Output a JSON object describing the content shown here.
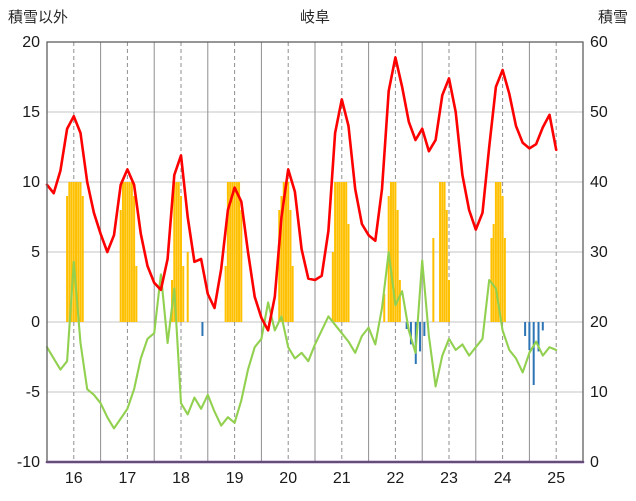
{
  "header": {
    "left_axis_title": "積雪以外",
    "chart_title": "岐阜",
    "right_axis_title": "積雪"
  },
  "chart_data": {
    "type": "line",
    "title": "岐阜",
    "left_axis": {
      "title": "積雪以外",
      "min": -10,
      "max": 20,
      "ticks": [
        20,
        15,
        10,
        5,
        0,
        -5,
        -10
      ]
    },
    "right_axis": {
      "title": "積雪",
      "min": 0,
      "max": 60,
      "ticks": [
        60,
        50,
        40,
        30,
        20,
        10,
        0
      ]
    },
    "x_axis": {
      "min": 16,
      "max": 26,
      "day_labels": [
        "16",
        "17",
        "18",
        "19",
        "20",
        "21",
        "22",
        "23",
        "24",
        "25"
      ]
    },
    "grid": {
      "h_color": "#c6c6c6",
      "v_color": "#8f8f8f",
      "frame_color": "#5f5f5f",
      "label_color": "#1a1a1a"
    },
    "series": [
      {
        "name": "orange_bars",
        "type": "bar",
        "axis": "left",
        "color": "#FFC000",
        "points": [
          [
            16.375,
            9
          ],
          [
            16.417,
            10
          ],
          [
            16.458,
            10
          ],
          [
            16.5,
            10
          ],
          [
            16.542,
            10
          ],
          [
            16.583,
            10
          ],
          [
            16.625,
            10
          ],
          [
            16.667,
            9
          ],
          [
            17.375,
            8
          ],
          [
            17.417,
            10
          ],
          [
            17.458,
            10
          ],
          [
            17.5,
            10
          ],
          [
            17.542,
            10
          ],
          [
            17.583,
            10
          ],
          [
            17.625,
            9
          ],
          [
            17.667,
            4
          ],
          [
            18.333,
            3
          ],
          [
            18.375,
            10
          ],
          [
            18.417,
            10
          ],
          [
            18.458,
            10
          ],
          [
            18.5,
            9
          ],
          [
            18.542,
            4
          ],
          [
            18.625,
            5
          ],
          [
            19.333,
            4
          ],
          [
            19.375,
            10
          ],
          [
            19.417,
            10
          ],
          [
            19.458,
            10
          ],
          [
            19.5,
            10
          ],
          [
            19.542,
            10
          ],
          [
            19.583,
            10
          ],
          [
            19.625,
            8
          ],
          [
            20.333,
            8
          ],
          [
            20.375,
            9
          ],
          [
            20.417,
            10
          ],
          [
            20.458,
            10
          ],
          [
            20.5,
            10
          ],
          [
            20.542,
            8
          ],
          [
            20.583,
            4
          ],
          [
            21.333,
            5
          ],
          [
            21.375,
            10
          ],
          [
            21.417,
            10
          ],
          [
            21.458,
            10
          ],
          [
            21.5,
            10
          ],
          [
            21.542,
            10
          ],
          [
            21.583,
            10
          ],
          [
            21.625,
            7
          ],
          [
            22.292,
            2
          ],
          [
            22.375,
            9
          ],
          [
            22.417,
            10
          ],
          [
            22.458,
            10
          ],
          [
            22.5,
            10
          ],
          [
            22.542,
            8
          ],
          [
            22.583,
            3
          ],
          [
            23.208,
            6
          ],
          [
            23.333,
            10
          ],
          [
            23.375,
            10
          ],
          [
            23.417,
            10
          ],
          [
            23.458,
            8
          ],
          [
            23.5,
            3
          ],
          [
            24.292,
            6
          ],
          [
            24.333,
            7
          ],
          [
            24.375,
            10
          ],
          [
            24.417,
            10
          ],
          [
            24.458,
            10
          ],
          [
            24.5,
            9
          ],
          [
            24.542,
            6
          ]
        ]
      },
      {
        "name": "blue_bars",
        "type": "bar",
        "axis": "left",
        "color": "#2E75B6",
        "points": [
          [
            18.9,
            -1.0
          ],
          [
            22.71,
            -0.5
          ],
          [
            22.79,
            -1.6
          ],
          [
            22.88,
            -3.0
          ],
          [
            22.96,
            -2.1
          ],
          [
            23.04,
            -1.0
          ],
          [
            24.92,
            -1.0
          ],
          [
            25.0,
            -2.0
          ],
          [
            25.08,
            -4.5
          ],
          [
            25.17,
            -2.1
          ],
          [
            25.25,
            -0.6
          ]
        ]
      },
      {
        "name": "green_line",
        "type": "line",
        "axis": "left",
        "color": "#92D050",
        "x0": 16,
        "dx": 0.125,
        "values": [
          -1.8,
          -2.6,
          -3.4,
          -2.8,
          4.3,
          -1.5,
          -4.8,
          -5.2,
          -5.8,
          -6.8,
          -7.6,
          -6.9,
          -6.2,
          -4.8,
          -2.6,
          -1.2,
          -0.8,
          3.4,
          -1.5,
          2.4,
          -5.8,
          -6.6,
          -5.4,
          -6.2,
          -5.2,
          -6.4,
          -7.4,
          -6.8,
          -7.2,
          -5.6,
          -3.4,
          -1.8,
          -1.2,
          1.4,
          -0.6,
          0.4,
          -1.8,
          -2.6,
          -2.2,
          -2.8,
          -1.6,
          -0.6,
          0.4,
          -0.2,
          -0.8,
          -1.4,
          -2.2,
          -1.0,
          -0.4,
          -1.6,
          1.0,
          5.0,
          1.2,
          2.2,
          -0.6,
          -2.2,
          4.4,
          -1.0,
          -4.6,
          -2.4,
          -1.2,
          -2.0,
          -1.6,
          -2.4,
          -1.8,
          -1.2,
          3.0,
          2.4,
          -0.6,
          -2.0,
          -2.6,
          -3.6,
          -2.2,
          -1.4,
          -2.4,
          -1.8,
          -2.0
        ]
      },
      {
        "name": "red_line",
        "type": "line",
        "axis": "left",
        "color": "#FF0000",
        "x0": 16,
        "dx": 0.125,
        "values": [
          9.8,
          9.2,
          10.8,
          13.8,
          14.7,
          13.5,
          10.0,
          7.8,
          6.3,
          5.0,
          6.2,
          9.8,
          10.9,
          9.8,
          6.3,
          4.0,
          2.8,
          2.3,
          4.5,
          10.5,
          11.9,
          7.5,
          4.3,
          4.5,
          2.0,
          1.0,
          3.8,
          8.0,
          9.6,
          8.6,
          5.0,
          1.8,
          0.3,
          -0.6,
          1.8,
          7.5,
          10.9,
          9.3,
          5.2,
          3.1,
          3.0,
          3.3,
          6.5,
          13.5,
          15.9,
          14.0,
          9.5,
          7.0,
          6.2,
          5.8,
          9.5,
          16.5,
          18.9,
          16.8,
          14.3,
          13.0,
          13.8,
          12.2,
          13.0,
          16.2,
          17.4,
          15.0,
          10.5,
          8.0,
          6.6,
          7.8,
          12.5,
          16.8,
          18.0,
          16.3,
          14.0,
          12.8,
          12.4,
          12.7,
          13.9,
          14.8,
          12.3
        ]
      },
      {
        "name": "purple_line",
        "type": "line",
        "axis": "right",
        "color": "#7030A0",
        "points": [
          [
            16,
            0
          ],
          [
            26,
            0
          ]
        ]
      }
    ]
  }
}
